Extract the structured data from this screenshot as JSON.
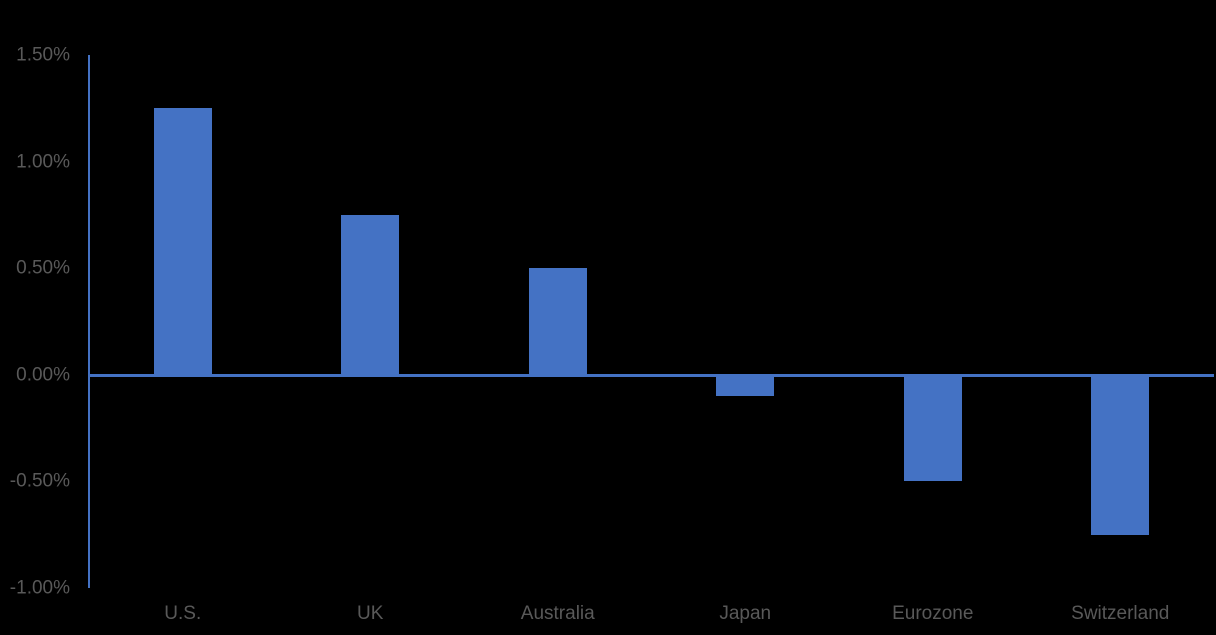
{
  "chart_data": {
    "type": "bar",
    "categories": [
      "U.S.",
      "UK",
      "Australia",
      "Japan",
      "Eurozone",
      "Switzerland"
    ],
    "values": [
      1.25,
      0.75,
      0.5,
      -0.1,
      -0.5,
      -0.75
    ],
    "xlabel": "",
    "ylabel": "",
    "ylim": [
      -1.0,
      1.5
    ],
    "ytick_interval": 0.5,
    "yticks": [
      {
        "value": 1.5,
        "label": "1.50%"
      },
      {
        "value": 1.0,
        "label": "1.00%"
      },
      {
        "value": 0.5,
        "label": "0.50%"
      },
      {
        "value": 0.0,
        "label": "0.00%"
      },
      {
        "value": -0.5,
        "label": "-0.50%"
      },
      {
        "value": -1.0,
        "label": "-1.00%"
      }
    ],
    "grid": false,
    "legend": "none",
    "colors": {
      "bar": "#4472C4",
      "axis": "#4472C4",
      "tick_text": "#595959",
      "category_text": "#595959",
      "background": "#000000"
    }
  }
}
